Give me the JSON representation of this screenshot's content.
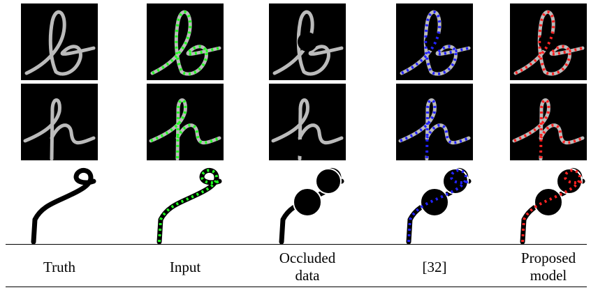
{
  "columns": [
    {
      "label": "Truth"
    },
    {
      "label": "Input"
    },
    {
      "label": "Occluded data"
    },
    {
      "label": "[32]"
    },
    {
      "label": "Proposed model"
    }
  ]
}
